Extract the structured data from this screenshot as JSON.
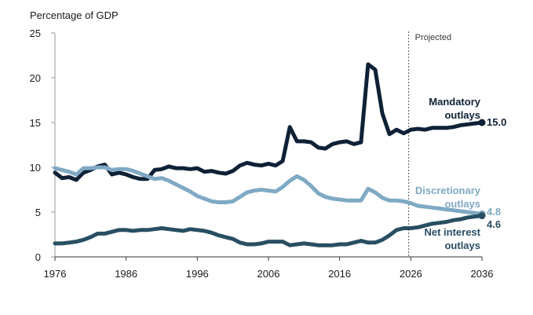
{
  "chart_data": {
    "type": "line",
    "ylabel": "Percentage of GDP",
    "ylim": [
      0,
      25
    ],
    "yticks": [
      0,
      5,
      10,
      15,
      20,
      25
    ],
    "xlim": [
      1976,
      2036
    ],
    "xticks": [
      1976,
      1986,
      1996,
      2006,
      2016,
      2026,
      2036
    ],
    "projection_start": 2025.7,
    "projection_label": "Projected",
    "grid": false,
    "series": [
      {
        "name": "Mandatory outlays",
        "label_lines": [
          "Mandatory",
          "outlays"
        ],
        "color": "#0f2136",
        "end_value": "15.0",
        "x": [
          1976,
          1977,
          1978,
          1979,
          1980,
          1981,
          1982,
          1983,
          1984,
          1985,
          1986,
          1987,
          1988,
          1989,
          1990,
          1991,
          1992,
          1993,
          1994,
          1995,
          1996,
          1997,
          1998,
          1999,
          2000,
          2001,
          2002,
          2003,
          2004,
          2005,
          2006,
          2007,
          2008,
          2009,
          2010,
          2011,
          2012,
          2013,
          2014,
          2015,
          2016,
          2017,
          2018,
          2019,
          2020,
          2021,
          2022,
          2023,
          2024,
          2025,
          2026,
          2027,
          2028,
          2029,
          2030,
          2031,
          2032,
          2033,
          2034,
          2035,
          2036
        ],
        "values": [
          9.4,
          8.8,
          8.9,
          8.6,
          9.4,
          9.7,
          10.1,
          10.3,
          9.2,
          9.4,
          9.2,
          8.9,
          8.7,
          8.7,
          9.7,
          9.8,
          10.1,
          9.9,
          9.9,
          9.8,
          9.9,
          9.5,
          9.6,
          9.4,
          9.3,
          9.6,
          10.2,
          10.5,
          10.3,
          10.2,
          10.4,
          10.2,
          10.7,
          14.5,
          12.9,
          12.9,
          12.8,
          12.2,
          12.1,
          12.6,
          12.8,
          12.9,
          12.6,
          12.8,
          21.5,
          20.9,
          16.0,
          13.7,
          14.2,
          13.8,
          14.2,
          14.3,
          14.2,
          14.4,
          14.4,
          14.4,
          14.5,
          14.7,
          14.8,
          14.9,
          15.0
        ]
      },
      {
        "name": "Discretionary outlays",
        "label_lines": [
          "Discretionary",
          "outlays"
        ],
        "color": "#7fa9c4",
        "end_value": "4.8",
        "x": [
          1976,
          1977,
          1978,
          1979,
          1980,
          1981,
          1982,
          1983,
          1984,
          1985,
          1986,
          1987,
          1988,
          1989,
          1990,
          1991,
          1992,
          1993,
          1994,
          1995,
          1996,
          1997,
          1998,
          1999,
          2000,
          2001,
          2002,
          2003,
          2004,
          2005,
          2006,
          2007,
          2008,
          2009,
          2010,
          2011,
          2012,
          2013,
          2014,
          2015,
          2016,
          2017,
          2018,
          2019,
          2020,
          2021,
          2022,
          2023,
          2024,
          2025,
          2026,
          2027,
          2028,
          2029,
          2030,
          2031,
          2032,
          2033,
          2034,
          2035,
          2036
        ],
        "values": [
          9.9,
          9.7,
          9.5,
          9.2,
          9.9,
          9.9,
          10.0,
          10.0,
          9.7,
          9.8,
          9.8,
          9.6,
          9.3,
          9.0,
          8.7,
          8.8,
          8.5,
          8.1,
          7.7,
          7.3,
          6.8,
          6.5,
          6.2,
          6.1,
          6.1,
          6.2,
          6.7,
          7.2,
          7.4,
          7.5,
          7.4,
          7.3,
          7.8,
          8.5,
          9.0,
          8.6,
          7.9,
          7.1,
          6.7,
          6.5,
          6.4,
          6.3,
          6.3,
          6.3,
          7.6,
          7.2,
          6.6,
          6.3,
          6.3,
          6.2,
          6.0,
          5.7,
          5.6,
          5.5,
          5.4,
          5.3,
          5.2,
          5.1,
          5.0,
          4.9,
          4.8
        ]
      },
      {
        "name": "Net interest outlays",
        "label_lines": [
          "Net interest",
          "outlays"
        ],
        "color": "#284f63",
        "end_value": "4.6",
        "x": [
          1976,
          1977,
          1978,
          1979,
          1980,
          1981,
          1982,
          1983,
          1984,
          1985,
          1986,
          1987,
          1988,
          1989,
          1990,
          1991,
          1992,
          1993,
          1994,
          1995,
          1996,
          1997,
          1998,
          1999,
          2000,
          2001,
          2002,
          2003,
          2004,
          2005,
          2006,
          2007,
          2008,
          2009,
          2010,
          2011,
          2012,
          2013,
          2014,
          2015,
          2016,
          2017,
          2018,
          2019,
          2020,
          2021,
          2022,
          2023,
          2024,
          2025,
          2026,
          2027,
          2028,
          2029,
          2030,
          2031,
          2032,
          2033,
          2034,
          2035,
          2036
        ],
        "values": [
          1.5,
          1.5,
          1.6,
          1.7,
          1.9,
          2.2,
          2.6,
          2.6,
          2.8,
          3.0,
          3.0,
          2.9,
          3.0,
          3.0,
          3.1,
          3.2,
          3.1,
          3.0,
          2.9,
          3.1,
          3.0,
          2.9,
          2.7,
          2.4,
          2.2,
          2.0,
          1.6,
          1.4,
          1.4,
          1.5,
          1.7,
          1.7,
          1.7,
          1.3,
          1.4,
          1.5,
          1.4,
          1.3,
          1.3,
          1.3,
          1.4,
          1.4,
          1.6,
          1.8,
          1.6,
          1.6,
          1.9,
          2.4,
          3.0,
          3.2,
          3.2,
          3.3,
          3.5,
          3.7,
          3.8,
          3.9,
          4.1,
          4.2,
          4.4,
          4.5,
          4.6
        ]
      }
    ]
  }
}
